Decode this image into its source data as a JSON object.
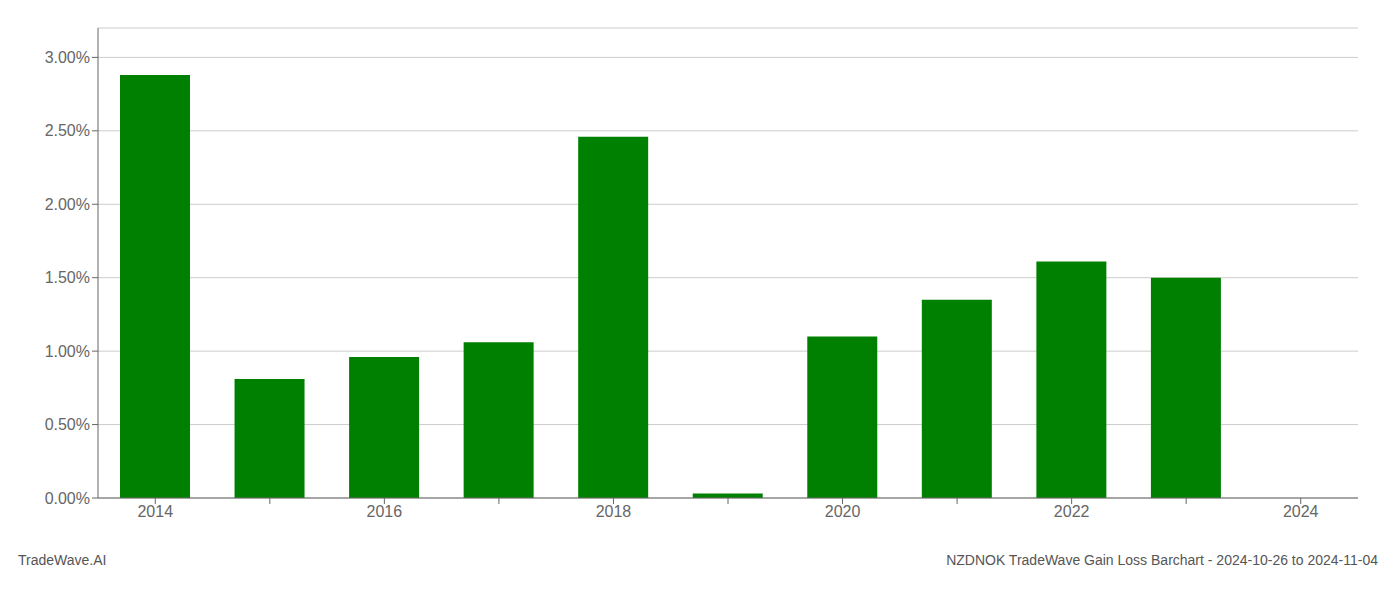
{
  "chart_data": {
    "type": "bar",
    "categories": [
      "2014",
      null,
      "2016",
      null,
      "2018",
      null,
      "2020",
      null,
      "2022",
      null,
      "2024"
    ],
    "values": [
      0.0288,
      0.0081,
      0.0096,
      0.0106,
      0.0246,
      0.0003,
      0.011,
      0.0135,
      0.0161,
      0.015,
      0.0
    ],
    "color": "#008000",
    "ylim": [
      0.0,
      0.032
    ],
    "yticks": [
      {
        "value": 0,
        "label": "0.00%"
      },
      {
        "value": 0.005,
        "label": "0.50%"
      },
      {
        "value": 0.01,
        "label": "1.00%"
      },
      {
        "value": 0.015,
        "label": "1.50%"
      },
      {
        "value": 0.02,
        "label": "2.00%"
      },
      {
        "value": 0.025,
        "label": "2.50%"
      },
      {
        "value": 0.03,
        "label": "3.00%"
      }
    ],
    "grid": true,
    "annotations": [
      "TradeWave.AI",
      "NZDNOK TradeWave Gain Loss Barchart - 2024-10-26 to 2024-11-04"
    ]
  }
}
